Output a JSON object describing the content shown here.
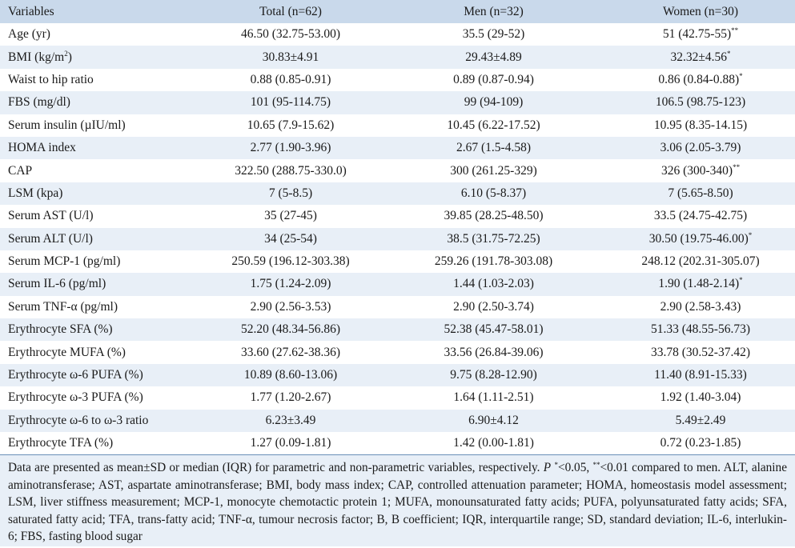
{
  "table": {
    "headers": [
      "Variables",
      "Total (n=62)",
      "Men (n=32)",
      "Women (n=30)"
    ],
    "rows": [
      {
        "variable": "Age (yr)",
        "total": "46.50 (32.75-53.00)",
        "men": "35.5 (29-52)",
        "women": "51 (42.75-55)",
        "women_sup": "**"
      },
      {
        "variable": "BMI (kg/m",
        "variable_sup": "2",
        "variable_after": ")",
        "total": "30.83±4.91",
        "men": "29.43±4.89",
        "women": "32.32±4.56",
        "women_sup": "*"
      },
      {
        "variable": "Waist to hip ratio",
        "total": "0.88 (0.85-0.91)",
        "men": "0.89 (0.87-0.94)",
        "women": "0.86 (0.84-0.88)",
        "women_sup": "*"
      },
      {
        "variable": "FBS (mg/dl)",
        "total": "101 (95-114.75)",
        "men": "99 (94-109)",
        "women": "106.5 (98.75-123)"
      },
      {
        "variable": "Serum insulin (µIU/ml)",
        "total": "10.65 (7.9-15.62)",
        "men": "10.45 (6.22-17.52)",
        "women": "10.95 (8.35-14.15)"
      },
      {
        "variable": "HOMA index",
        "total": "2.77 (1.90-3.96)",
        "men": "2.67 (1.5-4.58)",
        "women": "3.06 (2.05-3.79)"
      },
      {
        "variable": "CAP",
        "total": "322.50 (288.75-330.0)",
        "men": "300 (261.25-329)",
        "women": "326 (300-340)",
        "women_sup": "**"
      },
      {
        "variable": "LSM (kpa)",
        "total": "7 (5-8.5)",
        "men": "6.10 (5-8.37)",
        "women": "7 (5.65-8.50)"
      },
      {
        "variable": "Serum AST (U/l)",
        "total": "35 (27-45)",
        "men": "39.85 (28.25-48.50)",
        "women": "33.5 (24.75-42.75)"
      },
      {
        "variable": "Serum ALT (U/l)",
        "total": "34 (25-54)",
        "men": "38.5 (31.75-72.25)",
        "women": "30.50 (19.75-46.00)",
        "women_sup": "*"
      },
      {
        "variable": "Serum MCP-1 (pg/ml)",
        "total": "250.59 (196.12-303.38)",
        "men": "259.26 (191.78-303.08)",
        "women": "248.12 (202.31-305.07)"
      },
      {
        "variable": "Serum IL-6 (pg/ml)",
        "total": "1.75 (1.24-2.09)",
        "men": "1.44 (1.03-2.03)",
        "women": "1.90 (1.48-2.14)",
        "women_sup": "*"
      },
      {
        "variable": "Serum TNF-α (pg/ml)",
        "total": "2.90 (2.56-3.53)",
        "men": "2.90 (2.50-3.74)",
        "women": "2.90 (2.58-3.43)"
      },
      {
        "variable": "Erythrocyte SFA (%)",
        "total": "52.20 (48.34-56.86)",
        "men": "52.38 (45.47-58.01)",
        "women": "51.33 (48.55-56.73)"
      },
      {
        "variable": "Erythrocyte MUFA (%)",
        "total": "33.60 (27.62-38.36)",
        "men": "33.56 (26.84-39.06)",
        "women": "33.78 (30.52-37.42)"
      },
      {
        "variable": "Erythrocyte ω-6 PUFA (%)",
        "total": "10.89 (8.60-13.06)",
        "men": "9.75 (8.28-12.90)",
        "women": "11.40 (8.91-15.33)"
      },
      {
        "variable": "Erythrocyte ω-3 PUFA (%)",
        "total": "1.77 (1.20-2.67)",
        "men": "1.64 (1.11-2.51)",
        "women": "1.92 (1.40-3.04)"
      },
      {
        "variable": "Erythrocyte ω-6 to ω-3 ratio",
        "total": "6.23±3.49",
        "men": "6.90±4.12",
        "women": "5.49±2.49"
      },
      {
        "variable": "Erythrocyte TFA (%)",
        "total": "1.27 (0.09-1.81)",
        "men": "1.42 (0.00-1.81)",
        "women": "0.72 (0.23-1.85)"
      }
    ]
  },
  "footnote": {
    "part1": "Data are presented as mean±SD or median (IQR) for parametric and non-parametric variables, respectively. ",
    "p_letter": "P",
    "sig1_sup": "*",
    "sig1_text": "<0.05, ",
    "sig2_sup": "**",
    "sig2_text": "<0.01 compared to men. ALT, alanine aminotransferase; AST, aspartate aminotransferase; BMI, body mass index; CAP, controlled attenuation parameter; HOMA, homeostasis model assessment; LSM, liver stiffness measurement; MCP-1, monocyte chemotactic protein 1; MUFA, monounsaturated fatty acids; PUFA, polyunsaturated fatty acids; SFA, saturated fatty acid; TFA, trans-fatty acid; TNF-α, tumour necrosis factor; B, B coefficient; IQR, interquartile range; SD, standard deviation; IL-6, interlukin-6; FBS, fasting blood sugar"
  },
  "colors": {
    "header_bg": "#c9d9eb",
    "stripe_bg": "#e8eff7",
    "rule": "#6a8fb8"
  }
}
